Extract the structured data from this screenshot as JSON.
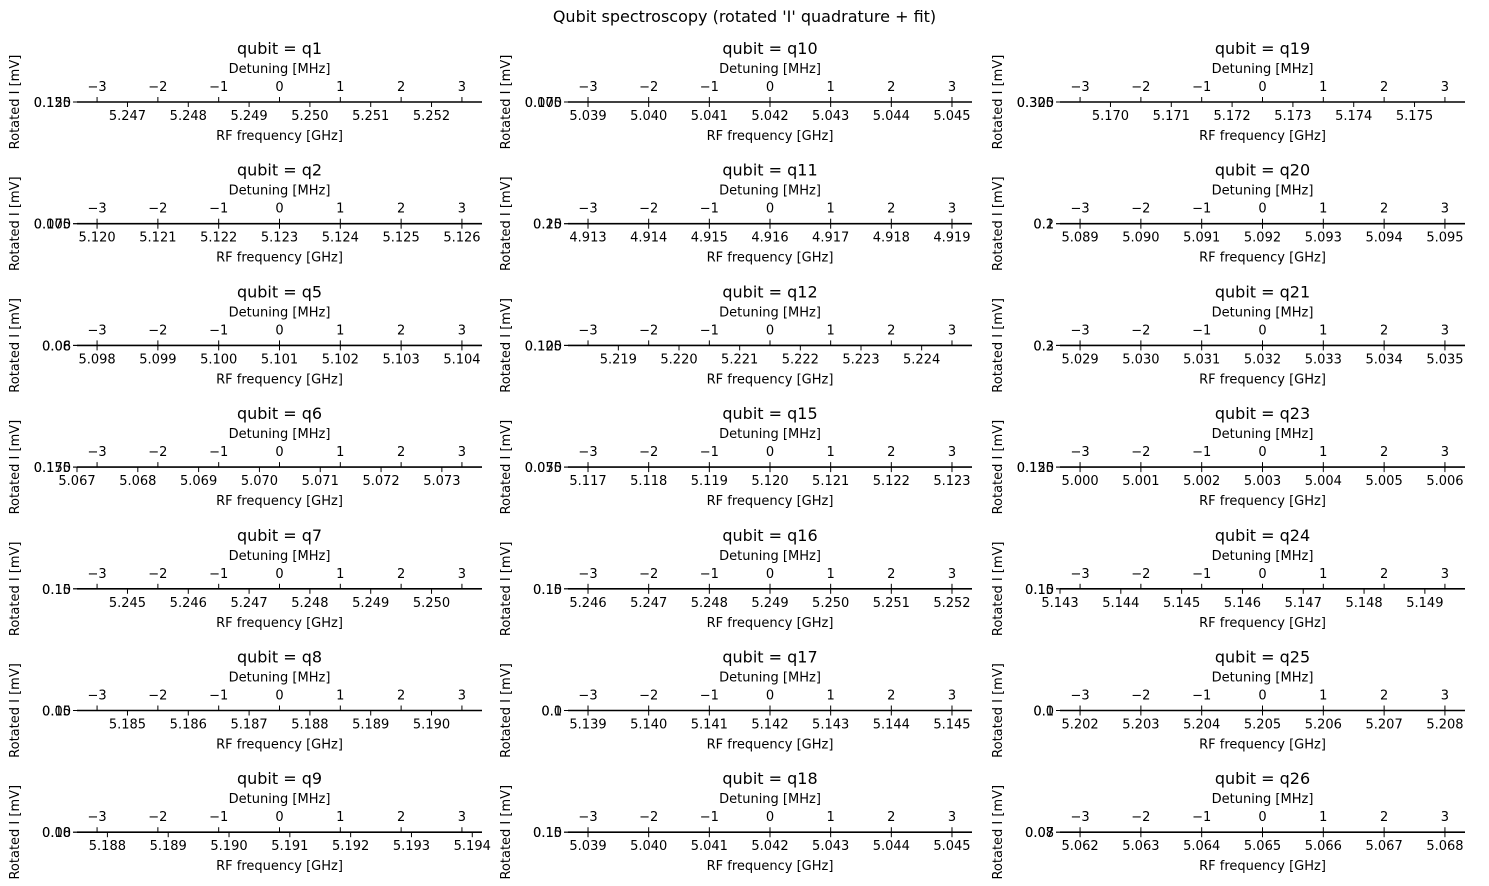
{
  "figure": {
    "title": "Qubit spectroscopy (rotated 'I' quadrature + fit)"
  },
  "chart_data": [
    {
      "type": "line",
      "title": "qubit = q1",
      "xlabel": "RF frequency [GHz]",
      "top_xlabel": "Detuning [MHz]",
      "ylabel": "Rotated I [mV]",
      "detuning_ticks": [
        -3,
        -2,
        -1,
        0,
        1,
        2,
        3
      ],
      "xticks": [
        "5.247",
        "5.248",
        "5.249",
        "5.250",
        "5.251",
        "5.252"
      ],
      "xlim": [
        5.24617,
        5.25283
      ],
      "yticklabels": [
        "0.125",
        "0.150"
      ]
    },
    {
      "type": "line",
      "title": "qubit = q10",
      "xlabel": "RF frequency [GHz]",
      "top_xlabel": "Detuning [MHz]",
      "ylabel": "Rotated I [mV]",
      "detuning_ticks": [
        -3,
        -2,
        -1,
        0,
        1,
        2,
        3
      ],
      "xticks": [
        "5.039",
        "5.040",
        "5.041",
        "5.042",
        "5.043",
        "5.044",
        "5.045"
      ],
      "xlim": [
        5.03867,
        5.04533
      ],
      "yticklabels": [
        "0.075",
        "0.100"
      ]
    },
    {
      "type": "line",
      "title": "qubit = q19",
      "xlabel": "RF frequency [GHz]",
      "top_xlabel": "Detuning [MHz]",
      "ylabel": "Rotated I [mV]",
      "detuning_ticks": [
        -3,
        -2,
        -1,
        0,
        1,
        2,
        3
      ],
      "xticks": [
        "5.170",
        "5.171",
        "5.172",
        "5.173",
        "5.174",
        "5.175"
      ],
      "xlim": [
        5.16917,
        5.17583
      ],
      "yticklabels": [
        "0.300",
        "0.325"
      ]
    },
    {
      "type": "line",
      "title": "qubit = q2",
      "xlabel": "RF frequency [GHz]",
      "top_xlabel": "Detuning [MHz]",
      "ylabel": "Rotated I [mV]",
      "detuning_ticks": [
        -3,
        -2,
        -1,
        0,
        1,
        2,
        3
      ],
      "xticks": [
        "5.120",
        "5.121",
        "5.122",
        "5.123",
        "5.124",
        "5.125",
        "5.126"
      ],
      "xlim": [
        5.11967,
        5.12633
      ],
      "yticklabels": [
        "0.075",
        "0.100"
      ]
    },
    {
      "type": "line",
      "title": "qubit = q11",
      "xlabel": "RF frequency [GHz]",
      "top_xlabel": "Detuning [MHz]",
      "ylabel": "Rotated I [mV]",
      "detuning_ticks": [
        -3,
        -2,
        -1,
        0,
        1,
        2,
        3
      ],
      "xticks": [
        "4.913",
        "4.914",
        "4.915",
        "4.916",
        "4.917",
        "4.918",
        "4.919"
      ],
      "xlim": [
        4.91267,
        4.91933
      ],
      "yticklabels": [
        "0.15",
        "0.20"
      ]
    },
    {
      "type": "line",
      "title": "qubit = q20",
      "xlabel": "RF frequency [GHz]",
      "top_xlabel": "Detuning [MHz]",
      "ylabel": "Rotated I [mV]",
      "detuning_ticks": [
        -3,
        -2,
        -1,
        0,
        1,
        2,
        3
      ],
      "xticks": [
        "5.089",
        "5.090",
        "5.091",
        "5.092",
        "5.093",
        "5.094",
        "5.095"
      ],
      "xlim": [
        5.08867,
        5.09533
      ],
      "yticklabels": [
        "0.1",
        "0.2"
      ]
    },
    {
      "type": "line",
      "title": "qubit = q5",
      "xlabel": "RF frequency [GHz]",
      "top_xlabel": "Detuning [MHz]",
      "ylabel": "Rotated I [mV]",
      "detuning_ticks": [
        -3,
        -2,
        -1,
        0,
        1,
        2,
        3
      ],
      "xticks": [
        "5.098",
        "5.099",
        "5.100",
        "5.101",
        "5.102",
        "5.103",
        "5.104"
      ],
      "xlim": [
        5.09767,
        5.10433
      ],
      "yticklabels": [
        "0.06",
        "0.08"
      ]
    },
    {
      "type": "line",
      "title": "qubit = q12",
      "xlabel": "RF frequency [GHz]",
      "top_xlabel": "Detuning [MHz]",
      "ylabel": "Rotated I [mV]",
      "detuning_ticks": [
        -3,
        -2,
        -1,
        0,
        1,
        2,
        3
      ],
      "xticks": [
        "5.219",
        "5.220",
        "5.221",
        "5.222",
        "5.223",
        "5.224"
      ],
      "xlim": [
        5.21817,
        5.22483
      ],
      "yticklabels": [
        "0.100",
        "0.125"
      ]
    },
    {
      "type": "line",
      "title": "qubit = q21",
      "xlabel": "RF frequency [GHz]",
      "top_xlabel": "Detuning [MHz]",
      "ylabel": "Rotated I [mV]",
      "detuning_ticks": [
        -3,
        -2,
        -1,
        0,
        1,
        2,
        3
      ],
      "xticks": [
        "5.029",
        "5.030",
        "5.031",
        "5.032",
        "5.033",
        "5.034",
        "5.035"
      ],
      "xlim": [
        5.02867,
        5.03533
      ],
      "yticklabels": [
        "0.2",
        "0.3"
      ]
    },
    {
      "type": "line",
      "title": "qubit = q6",
      "xlabel": "RF frequency [GHz]",
      "top_xlabel": "Detuning [MHz]",
      "ylabel": "Rotated I [mV]",
      "detuning_ticks": [
        -3,
        -2,
        -1,
        0,
        1,
        2,
        3
      ],
      "xticks": [
        "5.067",
        "5.068",
        "5.069",
        "5.070",
        "5.071",
        "5.072",
        "5.073"
      ],
      "xlim": [
        5.067,
        5.07366
      ],
      "yticklabels": [
        "0.150",
        "0.175"
      ]
    },
    {
      "type": "line",
      "title": "qubit = q15",
      "xlabel": "RF frequency [GHz]",
      "top_xlabel": "Detuning [MHz]",
      "ylabel": "Rotated I [mV]",
      "detuning_ticks": [
        -3,
        -2,
        -1,
        0,
        1,
        2,
        3
      ],
      "xticks": [
        "5.117",
        "5.118",
        "5.119",
        "5.120",
        "5.121",
        "5.122",
        "5.123"
      ],
      "xlim": [
        5.11667,
        5.12333
      ],
      "yticklabels": [
        "0.050",
        "0.075"
      ]
    },
    {
      "type": "line",
      "title": "qubit = q23",
      "xlabel": "RF frequency [GHz]",
      "top_xlabel": "Detuning [MHz]",
      "ylabel": "Rotated I [mV]",
      "detuning_ticks": [
        -3,
        -2,
        -1,
        0,
        1,
        2,
        3
      ],
      "xticks": [
        "5.000",
        "5.001",
        "5.002",
        "5.003",
        "5.004",
        "5.005",
        "5.006"
      ],
      "xlim": [
        4.99967,
        5.00633
      ],
      "yticklabels": [
        "0.125",
        "0.150"
      ]
    },
    {
      "type": "line",
      "title": "qubit = q7",
      "xlabel": "RF frequency [GHz]",
      "top_xlabel": "Detuning [MHz]",
      "ylabel": "Rotated I [mV]",
      "detuning_ticks": [
        -3,
        -2,
        -1,
        0,
        1,
        2,
        3
      ],
      "xticks": [
        "5.245",
        "5.246",
        "5.247",
        "5.248",
        "5.249",
        "5.250"
      ],
      "xlim": [
        5.24417,
        5.25083
      ],
      "yticklabels": [
        "0.10",
        "0.15"
      ]
    },
    {
      "type": "line",
      "title": "qubit = q16",
      "xlabel": "RF frequency [GHz]",
      "top_xlabel": "Detuning [MHz]",
      "ylabel": "Rotated I [mV]",
      "detuning_ticks": [
        -3,
        -2,
        -1,
        0,
        1,
        2,
        3
      ],
      "xticks": [
        "5.246",
        "5.247",
        "5.248",
        "5.249",
        "5.250",
        "5.251",
        "5.252"
      ],
      "xlim": [
        5.24567,
        5.25233
      ],
      "yticklabels": [
        "0.10",
        "0.15"
      ]
    },
    {
      "type": "line",
      "title": "qubit = q24",
      "xlabel": "RF frequency [GHz]",
      "top_xlabel": "Detuning [MHz]",
      "ylabel": "Rotated I [mV]",
      "detuning_ticks": [
        -3,
        -2,
        -1,
        0,
        1,
        2,
        3
      ],
      "xticks": [
        "5.143",
        "5.144",
        "5.145",
        "5.146",
        "5.147",
        "5.148",
        "5.149"
      ],
      "xlim": [
        5.143,
        5.14966
      ],
      "yticklabels": [
        "0.10",
        "0.15"
      ]
    },
    {
      "type": "line",
      "title": "qubit = q8",
      "xlabel": "RF frequency [GHz]",
      "top_xlabel": "Detuning [MHz]",
      "ylabel": "Rotated I [mV]",
      "detuning_ticks": [
        -3,
        -2,
        -1,
        0,
        1,
        2,
        3
      ],
      "xticks": [
        "5.185",
        "5.186",
        "5.187",
        "5.188",
        "5.189",
        "5.190"
      ],
      "xlim": [
        5.18417,
        5.19083
      ],
      "yticklabels": [
        "0.05",
        "0.10"
      ]
    },
    {
      "type": "line",
      "title": "qubit = q17",
      "xlabel": "RF frequency [GHz]",
      "top_xlabel": "Detuning [MHz]",
      "ylabel": "Rotated I [mV]",
      "detuning_ticks": [
        -3,
        -2,
        -1,
        0,
        1,
        2,
        3
      ],
      "xticks": [
        "5.139",
        "5.140",
        "5.141",
        "5.142",
        "5.143",
        "5.144",
        "5.145"
      ],
      "xlim": [
        5.13867,
        5.14533
      ],
      "yticklabels": [
        "0.0",
        "0.1"
      ]
    },
    {
      "type": "line",
      "title": "qubit = q25",
      "xlabel": "RF frequency [GHz]",
      "top_xlabel": "Detuning [MHz]",
      "ylabel": "Rotated I [mV]",
      "detuning_ticks": [
        -3,
        -2,
        -1,
        0,
        1,
        2,
        3
      ],
      "xticks": [
        "5.202",
        "5.203",
        "5.204",
        "5.205",
        "5.206",
        "5.207",
        "5.208"
      ],
      "xlim": [
        5.20167,
        5.20833
      ],
      "yticklabels": [
        "0.0",
        "0.1"
      ]
    },
    {
      "type": "line",
      "title": "qubit = q9",
      "xlabel": "RF frequency [GHz]",
      "top_xlabel": "Detuning [MHz]",
      "ylabel": "Rotated I [mV]",
      "detuning_ticks": [
        -3,
        -2,
        -1,
        0,
        1,
        2,
        3
      ],
      "xticks": [
        "5.188",
        "5.189",
        "5.190",
        "5.191",
        "5.192",
        "5.193",
        "5.194"
      ],
      "xlim": [
        5.1875,
        5.19416
      ],
      "yticklabels": [
        "0.08",
        "0.10"
      ]
    },
    {
      "type": "line",
      "title": "qubit = q18",
      "xlabel": "RF frequency [GHz]",
      "top_xlabel": "Detuning [MHz]",
      "ylabel": "Rotated I [mV]",
      "detuning_ticks": [
        -3,
        -2,
        -1,
        0,
        1,
        2,
        3
      ],
      "xticks": [
        "5.039",
        "5.040",
        "5.041",
        "5.042",
        "5.043",
        "5.044",
        "5.045"
      ],
      "xlim": [
        5.03867,
        5.04533
      ],
      "yticklabels": [
        "0.10",
        "0.15"
      ]
    },
    {
      "type": "line",
      "title": "qubit = q26",
      "xlabel": "RF frequency [GHz]",
      "top_xlabel": "Detuning [MHz]",
      "ylabel": "Rotated I [mV]",
      "detuning_ticks": [
        -3,
        -2,
        -1,
        0,
        1,
        2,
        3
      ],
      "xticks": [
        "5.062",
        "5.063",
        "5.064",
        "5.065",
        "5.066",
        "5.067",
        "5.068"
      ],
      "xlim": [
        5.06167,
        5.06833
      ],
      "yticklabels": [
        "0.07",
        "0.08"
      ]
    }
  ]
}
